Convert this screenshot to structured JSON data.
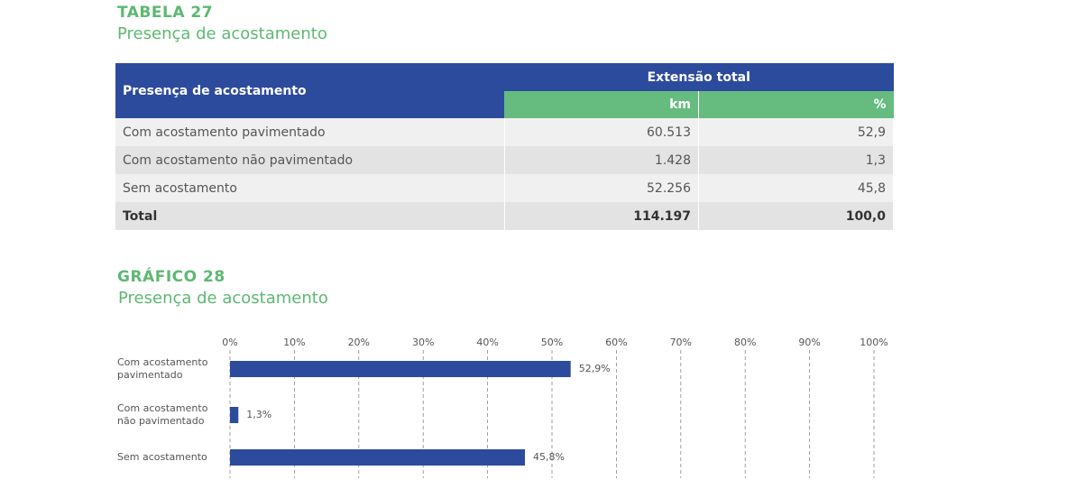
{
  "table_section": {
    "label": "TABELA 27",
    "title": "Presença de acostamento",
    "header": {
      "row_head": "Presença de acostamento",
      "group": "Extensão total",
      "km": "km",
      "pct": "%"
    },
    "rows": [
      [
        "Com acostamento pavimentado",
        "60.513",
        "52,9"
      ],
      [
        "Com acostamento não pavimentado",
        "1.428",
        "1,3"
      ],
      [
        "Sem acostamento",
        "52.256",
        "45,8"
      ]
    ],
    "total": [
      "Total",
      "114.197",
      "100,0"
    ]
  },
  "chart_data": {
    "type": "hbar",
    "title": "GRÁFICO 28",
    "subtitle": "Presença de acostamento",
    "categories": [
      "Com acostamento pavimentado",
      "Com acostamento não pavimentado",
      "Sem acostamento"
    ],
    "values": [
      52.9,
      1.3,
      45.8
    ],
    "value_labels": [
      "52,9%",
      "1,3%",
      "45,8%"
    ],
    "color": "#2c4b9c",
    "xlim": [
      0,
      100
    ],
    "xticks": [
      {
        "value": 0,
        "label": "0%"
      },
      {
        "value": 10,
        "label": "10%"
      },
      {
        "value": 20,
        "label": "20%"
      },
      {
        "value": 30,
        "label": "30%"
      },
      {
        "value": 40,
        "label": "40%"
      },
      {
        "value": 50,
        "label": "50%"
      },
      {
        "value": 60,
        "label": "60%"
      },
      {
        "value": 70,
        "label": "70%"
      },
      {
        "value": 80,
        "label": "80%"
      },
      {
        "value": 90,
        "label": "90%"
      },
      {
        "value": 100,
        "label": "100%"
      }
    ],
    "grid": true
  }
}
